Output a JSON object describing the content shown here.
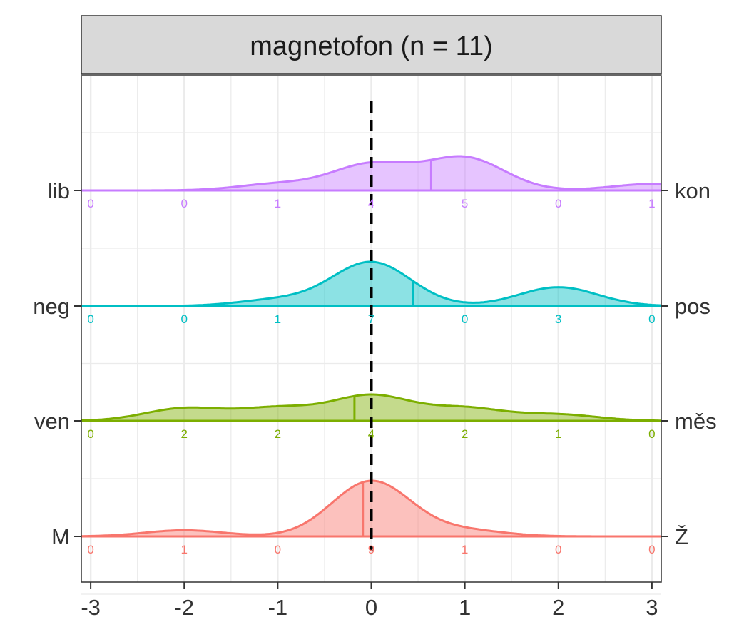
{
  "chart_data": {
    "type": "ridgeline",
    "title": "",
    "panel_title": "magnetofon (n = 11)",
    "xlabel": "",
    "ylabel": "",
    "xlim": [
      -3.1,
      3.1
    ],
    "x_ticks": [
      -3,
      -2,
      -1,
      0,
      1,
      2,
      3
    ],
    "x_tick_labels": [
      "-3",
      "-2",
      "-1",
      "0",
      "1",
      "2",
      "3"
    ],
    "reference_line_x": 0,
    "grid": true,
    "legend": "none",
    "count_positions": [
      -3,
      -2,
      -1,
      0,
      1,
      2,
      3
    ],
    "series": [
      {
        "left_label": "lib",
        "right_label": "kon",
        "color": "#C77CFF",
        "counts": [
          0,
          0,
          1,
          4,
          5,
          0,
          1
        ],
        "mean": 0.64,
        "peak_height": 0.48
      },
      {
        "left_label": "neg",
        "right_label": "pos",
        "color": "#00BFC4",
        "counts": [
          0,
          0,
          1,
          7,
          0,
          3,
          0
        ],
        "mean": 0.45,
        "peak_height": 0.62
      },
      {
        "left_label": "ven",
        "right_label": "měs",
        "color": "#7CAE00",
        "counts": [
          0,
          2,
          2,
          4,
          2,
          1,
          0
        ],
        "mean": -0.18,
        "peak_height": 0.37
      },
      {
        "left_label": "M",
        "right_label": "Ž",
        "color": "#F8766D",
        "counts": [
          0,
          1,
          0,
          9,
          1,
          0,
          0
        ],
        "mean": -0.09,
        "peak_height": 0.78
      }
    ]
  }
}
